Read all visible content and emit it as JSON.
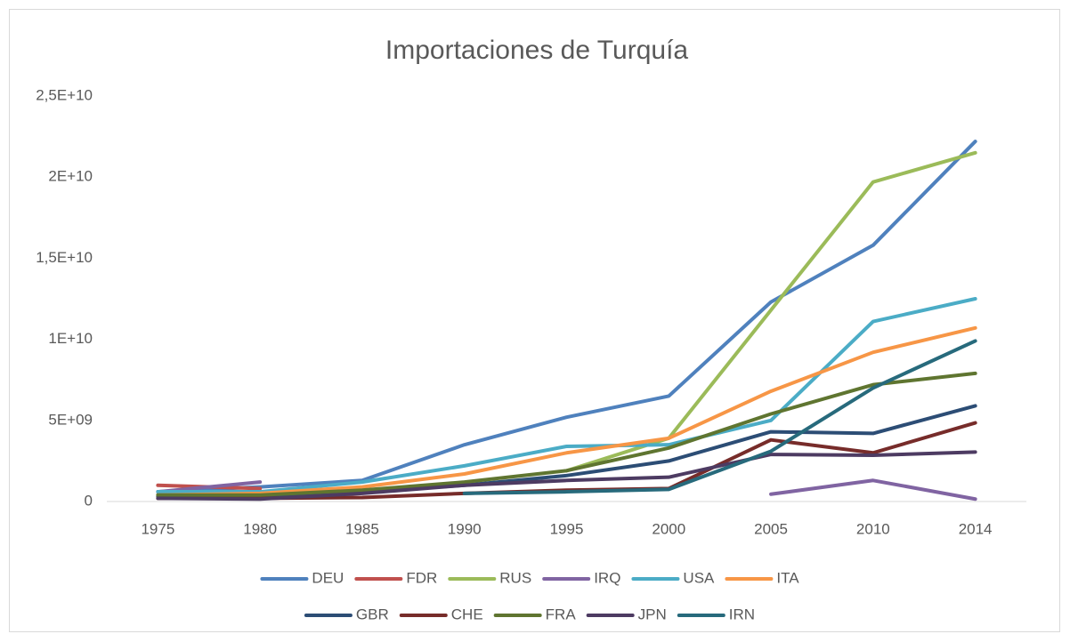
{
  "chart_data": {
    "type": "line",
    "title": "Importaciones de Turquía",
    "categories": [
      "1975",
      "1980",
      "1985",
      "1990",
      "1995",
      "2000",
      "2005",
      "2010",
      "2014"
    ],
    "ylim": [
      0,
      25000000000
    ],
    "yticks": [
      0,
      {
        "value": 5000000000,
        "label": "5E+09"
      },
      {
        "value": 10000000000,
        "label": "1E+10"
      },
      {
        "value": 15000000000,
        "label": "1,5E+10"
      },
      {
        "value": 20000000000,
        "label": "2E+10"
      },
      {
        "value": 25000000000,
        "label": "2,5E+10"
      }
    ],
    "grid": false,
    "legend": "bottom",
    "series": [
      {
        "name": "DEU",
        "color": "#4f81bd",
        "values": [
          600000000,
          900000000,
          1300000000,
          3500000000,
          5200000000,
          6500000000,
          12300000000,
          15800000000,
          22200000000
        ]
      },
      {
        "name": "FDR",
        "color": "#c0504d",
        "values": [
          1000000000,
          800000000,
          null,
          null,
          null,
          null,
          null,
          null,
          null
        ]
      },
      {
        "name": "RUS",
        "color": "#9bbb59",
        "values": [
          null,
          null,
          null,
          null,
          1900000000,
          3900000000,
          11800000000,
          19700000000,
          21500000000
        ]
      },
      {
        "name": "IRQ",
        "color": "#8064a2",
        "values": [
          600000000,
          1200000000,
          null,
          null,
          null,
          null,
          450000000,
          1300000000,
          150000000
        ]
      },
      {
        "name": "USA",
        "color": "#4bacc6",
        "values": [
          600000000,
          600000000,
          1200000000,
          2200000000,
          3400000000,
          3500000000,
          5000000000,
          11100000000,
          12500000000
        ]
      },
      {
        "name": "ITA",
        "color": "#f79646",
        "values": [
          400000000,
          500000000,
          900000000,
          1700000000,
          3000000000,
          3900000000,
          6800000000,
          9200000000,
          10700000000
        ]
      },
      {
        "name": "GBR",
        "color": "#2c4d75",
        "values": [
          300000000,
          350000000,
          600000000,
          1000000000,
          1600000000,
          2500000000,
          4300000000,
          4200000000,
          5900000000
        ]
      },
      {
        "name": "CHE",
        "color": "#772c2a",
        "values": [
          200000000,
          200000000,
          250000000,
          500000000,
          700000000,
          800000000,
          3800000000,
          3000000000,
          4850000000
        ]
      },
      {
        "name": "FRA",
        "color": "#5f7530",
        "values": [
          400000000,
          400000000,
          700000000,
          1200000000,
          1900000000,
          3300000000,
          5400000000,
          7200000000,
          7900000000
        ]
      },
      {
        "name": "JPN",
        "color": "#4d3b62",
        "values": [
          200000000,
          150000000,
          500000000,
          1000000000,
          1300000000,
          1500000000,
          2900000000,
          2850000000,
          3050000000
        ]
      },
      {
        "name": "IRN",
        "color": "#276a7c",
        "values": [
          null,
          null,
          null,
          500000000,
          600000000,
          750000000,
          3100000000,
          7000000000,
          9900000000
        ]
      }
    ]
  }
}
